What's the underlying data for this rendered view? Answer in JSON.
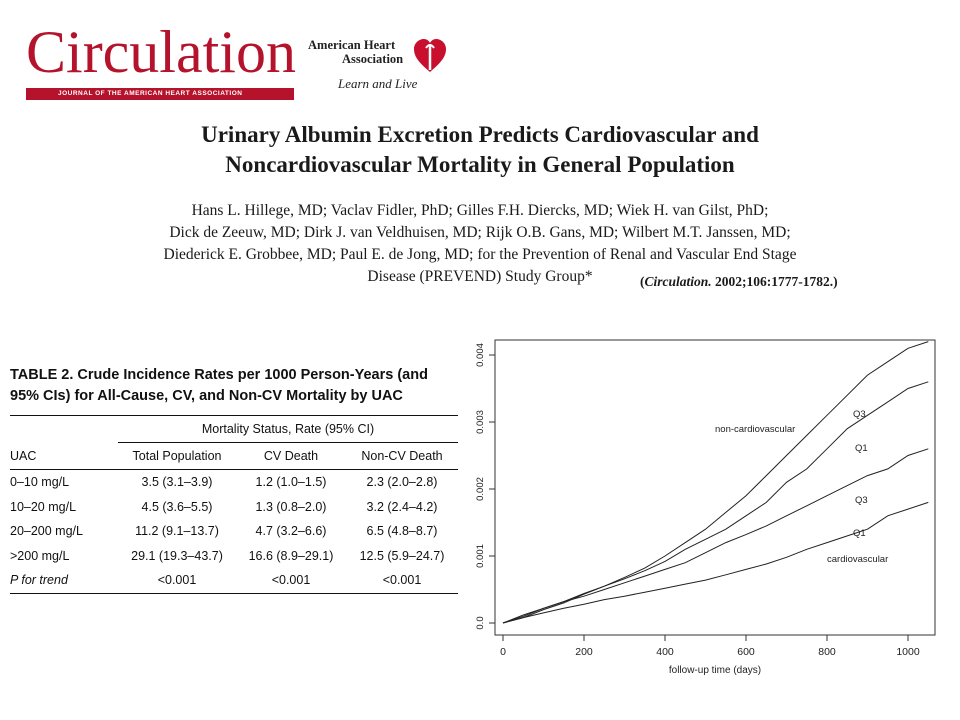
{
  "header": {
    "journal_logo_text": "Circulation",
    "journal_subtitle": "JOURNAL OF THE AMERICAN HEART ASSOCIATION",
    "aha_line1": "American Heart",
    "aha_line2": "Association",
    "aha_tagline": "Learn and Live"
  },
  "paper": {
    "title_line1": "Urinary Albumin Excretion Predicts Cardiovascular and",
    "title_line2": "Noncardiovascular Mortality in General Population",
    "authors_line1": "Hans L. Hillege, MD; Vaclav Fidler, PhD; Gilles F.H. Diercks, MD; Wiek H. van Gilst, PhD;",
    "authors_line2": "Dick de Zeeuw, MD; Dirk J. van Veldhuisen, MD; Rijk O.B. Gans, MD; Wilbert M.T. Janssen, MD;",
    "authors_line3": "Diederick E. Grobbee, MD; Paul E. de Jong, MD; for the Prevention of Renal and Vascular End Stage",
    "authors_line4": "Disease (PREVEND) Study Group*",
    "citation_journal": "Circulation.",
    "citation_rest": " 2002;106:1777-1782.)",
    "citation_open": "("
  },
  "table": {
    "caption_line1": "TABLE 2.   Crude Incidence Rates per 1000 Person-Years (and",
    "caption_line2": "95% CIs) for All-Cause, CV, and Non-CV Mortality by UAC",
    "group_header": "Mortality Status, Rate (95% CI)",
    "columns": [
      "UAC",
      "Total Population",
      "CV Death",
      "Non-CV Death"
    ],
    "rows": [
      [
        "0–10 mg/L",
        "3.5 (3.1–3.9)",
        "1.2 (1.0–1.5)",
        "2.3 (2.0–2.8)"
      ],
      [
        "10–20 mg/L",
        "4.5 (3.6–5.5)",
        "1.3 (0.8–2.0)",
        "3.2 (2.4–4.2)"
      ],
      [
        "20–200 mg/L",
        "11.2 (9.1–13.7)",
        "4.7 (3.2–6.6)",
        "6.5 (4.8–8.7)"
      ],
      [
        ">200 mg/L",
        "29.1 (19.3–43.7)",
        "16.6 (8.9–29.1)",
        "12.5 (5.9–24.7)"
      ],
      [
        "P for trend",
        "<0.001",
        "<0.001",
        "<0.001"
      ]
    ]
  },
  "chart_data": {
    "type": "line",
    "xlabel": "follow-up time (days)",
    "ylabel": "",
    "xlim": [
      0,
      1080
    ],
    "ylim": [
      0,
      0.0043
    ],
    "x_ticks": [
      0,
      200,
      400,
      600,
      800,
      1000
    ],
    "y_ticks": [
      0.0,
      0.001,
      0.002,
      0.003,
      0.004
    ],
    "y_tick_labels": [
      "0.0",
      "0.001",
      "0.002",
      "0.003",
      "0.004"
    ],
    "group_labels": [
      "non-cardiovascular",
      "cardiovascular"
    ],
    "series": [
      {
        "name": "Q3",
        "group": "non-cardiovascular",
        "points": [
          [
            0,
            0
          ],
          [
            50,
            8e-05
          ],
          [
            100,
            0.0002
          ],
          [
            150,
            0.0003
          ],
          [
            200,
            0.00043
          ],
          [
            250,
            0.00055
          ],
          [
            300,
            0.00068
          ],
          [
            350,
            0.00082
          ],
          [
            400,
            0.001
          ],
          [
            450,
            0.0012
          ],
          [
            500,
            0.0014
          ],
          [
            550,
            0.00165
          ],
          [
            600,
            0.0019
          ],
          [
            650,
            0.0022
          ],
          [
            700,
            0.0025
          ],
          [
            750,
            0.0028
          ],
          [
            800,
            0.0031
          ],
          [
            850,
            0.0034
          ],
          [
            900,
            0.0037
          ],
          [
            950,
            0.0039
          ],
          [
            1000,
            0.0041
          ],
          [
            1050,
            0.0042
          ]
        ]
      },
      {
        "name": "Q1",
        "group": "non-cardiovascular",
        "points": [
          [
            0,
            0
          ],
          [
            50,
            0.0001
          ],
          [
            100,
            0.00022
          ],
          [
            150,
            0.00032
          ],
          [
            200,
            0.00044
          ],
          [
            250,
            0.00055
          ],
          [
            300,
            0.00066
          ],
          [
            350,
            0.00078
          ],
          [
            400,
            0.00092
          ],
          [
            450,
            0.0011
          ],
          [
            500,
            0.00125
          ],
          [
            550,
            0.0014
          ],
          [
            600,
            0.0016
          ],
          [
            650,
            0.0018
          ],
          [
            700,
            0.0021
          ],
          [
            750,
            0.0023
          ],
          [
            800,
            0.0026
          ],
          [
            850,
            0.0029
          ],
          [
            900,
            0.0031
          ],
          [
            950,
            0.0033
          ],
          [
            1000,
            0.0035
          ],
          [
            1050,
            0.0036
          ]
        ]
      },
      {
        "name": "Q3",
        "group": "cardiovascular",
        "points": [
          [
            0,
            0
          ],
          [
            50,
            0.00012
          ],
          [
            100,
            0.00022
          ],
          [
            150,
            0.00032
          ],
          [
            200,
            0.0004
          ],
          [
            250,
            0.0005
          ],
          [
            300,
            0.0006
          ],
          [
            350,
            0.0007
          ],
          [
            400,
            0.0008
          ],
          [
            450,
            0.0009
          ],
          [
            500,
            0.00105
          ],
          [
            550,
            0.0012
          ],
          [
            600,
            0.00132
          ],
          [
            650,
            0.00145
          ],
          [
            700,
            0.0016
          ],
          [
            750,
            0.00175
          ],
          [
            800,
            0.0019
          ],
          [
            850,
            0.00205
          ],
          [
            900,
            0.0022
          ],
          [
            950,
            0.0023
          ],
          [
            1000,
            0.0025
          ],
          [
            1050,
            0.0026
          ]
        ]
      },
      {
        "name": "Q1",
        "group": "cardiovascular",
        "points": [
          [
            0,
            0
          ],
          [
            50,
            8e-05
          ],
          [
            100,
            0.00015
          ],
          [
            150,
            0.00022
          ],
          [
            200,
            0.00028
          ],
          [
            250,
            0.00035
          ],
          [
            300,
            0.0004
          ],
          [
            350,
            0.00046
          ],
          [
            400,
            0.00052
          ],
          [
            450,
            0.00058
          ],
          [
            500,
            0.00064
          ],
          [
            550,
            0.00072
          ],
          [
            600,
            0.0008
          ],
          [
            650,
            0.00088
          ],
          [
            700,
            0.00098
          ],
          [
            750,
            0.0011
          ],
          [
            800,
            0.0012
          ],
          [
            850,
            0.0013
          ],
          [
            900,
            0.0014
          ],
          [
            950,
            0.0016
          ],
          [
            1000,
            0.0017
          ],
          [
            1050,
            0.0018
          ]
        ]
      }
    ],
    "grid": false,
    "legend": "none"
  },
  "colors": {
    "brand_red": "#b5122b",
    "text": "#111111"
  }
}
